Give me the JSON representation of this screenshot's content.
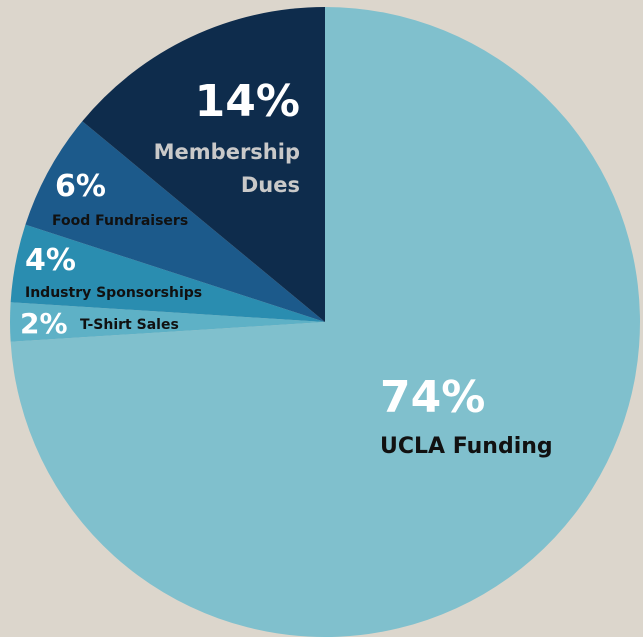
{
  "chart_data": {
    "type": "pie",
    "categories": [
      "UCLA Funding",
      "T-Shirt Sales",
      "Industry Sponsorships",
      "Food Fundraisers",
      "Membership Dues"
    ],
    "values": [
      74,
      2,
      4,
      6,
      14
    ],
    "value_labels": [
      "74%",
      "2%",
      "4%",
      "6%",
      "14%"
    ],
    "colors": [
      "#80c0cd",
      "#5eb1c6",
      "#2a8db0",
      "#1c5a8b",
      "#0e2c4c"
    ]
  }
}
